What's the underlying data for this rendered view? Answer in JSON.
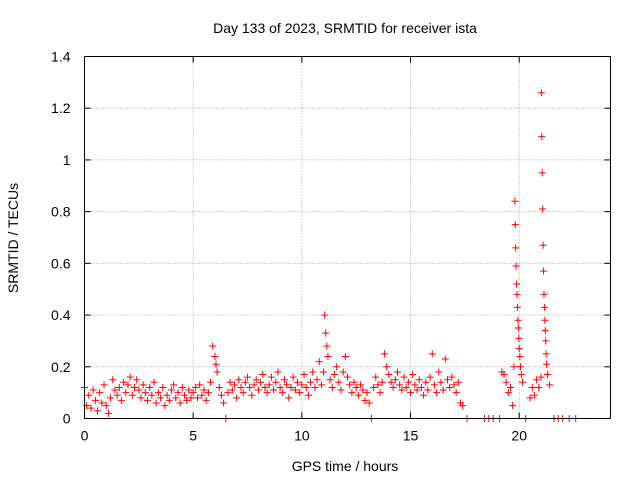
{
  "chart_data": {
    "type": "scatter",
    "title": "Day 133 of 2023, SRMTID for receiver ista",
    "xlabel": "GPS time / hours",
    "ylabel": "SRMTID / TECUs",
    "xlim": [
      0,
      24.2
    ],
    "ylim": [
      0,
      1.4
    ],
    "x_ticks": [
      0,
      5,
      10,
      15,
      20
    ],
    "x_tick_labels": [
      "0",
      "5",
      "10",
      "15",
      "20"
    ],
    "y_ticks": [
      0,
      0.2,
      0.4,
      0.6,
      0.8,
      1.0,
      1.2,
      1.4
    ],
    "y_tick_labels": [
      "0",
      "0.2",
      "0.4",
      "0.6",
      "0.8",
      "1",
      "1.2",
      "1.4"
    ],
    "grid": true,
    "marker": "plus",
    "color": "#ff0000",
    "series": [
      {
        "name": "SRMTID",
        "points": [
          [
            0.0,
            0.12
          ],
          [
            0.1,
            0.05
          ],
          [
            0.2,
            0.09
          ],
          [
            0.3,
            0.04
          ],
          [
            0.4,
            0.11
          ],
          [
            0.5,
            0.07
          ],
          [
            0.6,
            0.03
          ],
          [
            0.7,
            0.1
          ],
          [
            0.8,
            0.06
          ],
          [
            0.9,
            0.13
          ],
          [
            1.0,
            0.05
          ],
          [
            1.1,
            0.02
          ],
          [
            1.2,
            0.08
          ],
          [
            1.3,
            0.15
          ],
          [
            1.4,
            0.11
          ],
          [
            1.5,
            0.09
          ],
          [
            1.6,
            0.12
          ],
          [
            1.7,
            0.07
          ],
          [
            1.8,
            0.14
          ],
          [
            1.9,
            0.1
          ],
          [
            2.0,
            0.13
          ],
          [
            2.1,
            0.16
          ],
          [
            2.2,
            0.09
          ],
          [
            2.3,
            0.12
          ],
          [
            2.4,
            0.15
          ],
          [
            2.5,
            0.11
          ],
          [
            2.6,
            0.08
          ],
          [
            2.7,
            0.13
          ],
          [
            2.8,
            0.1
          ],
          [
            2.9,
            0.07
          ],
          [
            3.0,
            0.12
          ],
          [
            3.1,
            0.09
          ],
          [
            3.2,
            0.14
          ],
          [
            3.3,
            0.06
          ],
          [
            3.4,
            0.1
          ],
          [
            3.5,
            0.08
          ],
          [
            3.6,
            0.12
          ],
          [
            3.7,
            0.05
          ],
          [
            3.8,
            0.09
          ],
          [
            3.9,
            0.07
          ],
          [
            4.0,
            0.11
          ],
          [
            4.1,
            0.13
          ],
          [
            4.2,
            0.08
          ],
          [
            4.3,
            0.1
          ],
          [
            4.4,
            0.06
          ],
          [
            4.5,
            0.12
          ],
          [
            4.6,
            0.09
          ],
          [
            4.7,
            0.07
          ],
          [
            4.8,
            0.11
          ],
          [
            4.9,
            0.08
          ],
          [
            5.0,
            0.1
          ],
          [
            5.1,
            0.12
          ],
          [
            5.2,
            0.08
          ],
          [
            5.3,
            0.13
          ],
          [
            5.4,
            0.09
          ],
          [
            5.5,
            0.11
          ],
          [
            5.6,
            0.07
          ],
          [
            5.7,
            0.1
          ],
          [
            5.8,
            0.14
          ],
          [
            5.9,
            0.28
          ],
          [
            6.0,
            0.24
          ],
          [
            6.05,
            0.21
          ],
          [
            6.1,
            0.18
          ],
          [
            6.2,
            0.12
          ],
          [
            6.3,
            0.09
          ],
          [
            6.4,
            0.06
          ],
          [
            6.5,
            0.0
          ],
          [
            6.6,
            0.1
          ],
          [
            6.7,
            0.14
          ],
          [
            6.8,
            0.11
          ],
          [
            6.9,
            0.13
          ],
          [
            7.0,
            0.08
          ],
          [
            7.1,
            0.15
          ],
          [
            7.2,
            0.12
          ],
          [
            7.3,
            0.1
          ],
          [
            7.4,
            0.14
          ],
          [
            7.5,
            0.16
          ],
          [
            7.6,
            0.12
          ],
          [
            7.7,
            0.09
          ],
          [
            7.8,
            0.13
          ],
          [
            7.9,
            0.15
          ],
          [
            8.0,
            0.11
          ],
          [
            8.1,
            0.14
          ],
          [
            8.2,
            0.17
          ],
          [
            8.3,
            0.12
          ],
          [
            8.4,
            0.1
          ],
          [
            8.5,
            0.13
          ],
          [
            8.6,
            0.16
          ],
          [
            8.7,
            0.11
          ],
          [
            8.8,
            0.14
          ],
          [
            8.9,
            0.18
          ],
          [
            9.0,
            0.12
          ],
          [
            9.1,
            0.1
          ],
          [
            9.2,
            0.15
          ],
          [
            9.3,
            0.13
          ],
          [
            9.4,
            0.08
          ],
          [
            9.5,
            0.12
          ],
          [
            9.6,
            0.16
          ],
          [
            9.7,
            0.11
          ],
          [
            9.8,
            0.14
          ],
          [
            9.9,
            0.1
          ],
          [
            10.0,
            0.13
          ],
          [
            10.1,
            0.17
          ],
          [
            10.2,
            0.12
          ],
          [
            10.3,
            0.09
          ],
          [
            10.4,
            0.14
          ],
          [
            10.5,
            0.18
          ],
          [
            10.6,
            0.12
          ],
          [
            10.7,
            0.15
          ],
          [
            10.8,
            0.22
          ],
          [
            10.9,
            0.13
          ],
          [
            11.0,
            0.18
          ],
          [
            11.05,
            0.4
          ],
          [
            11.1,
            0.33
          ],
          [
            11.15,
            0.28
          ],
          [
            11.2,
            0.24
          ],
          [
            11.3,
            0.15
          ],
          [
            11.4,
            0.12
          ],
          [
            11.5,
            0.17
          ],
          [
            11.6,
            0.2
          ],
          [
            11.7,
            0.14
          ],
          [
            11.8,
            0.11
          ],
          [
            11.9,
            0.18
          ],
          [
            12.0,
            0.24
          ],
          [
            12.1,
            0.16
          ],
          [
            12.2,
            0.13
          ],
          [
            12.3,
            0.1
          ],
          [
            12.4,
            0.14
          ],
          [
            12.5,
            0.12
          ],
          [
            12.6,
            0.09
          ],
          [
            12.7,
            0.13
          ],
          [
            12.8,
            0.11
          ],
          [
            12.9,
            0.07
          ],
          [
            13.0,
            0.1
          ],
          [
            13.1,
            0.06
          ],
          [
            13.2,
            0.0
          ],
          [
            13.3,
            0.12
          ],
          [
            13.4,
            0.16
          ],
          [
            13.5,
            0.13
          ],
          [
            13.6,
            0.1
          ],
          [
            13.7,
            0.14
          ],
          [
            13.8,
            0.25
          ],
          [
            13.9,
            0.2
          ],
          [
            14.0,
            0.17
          ],
          [
            14.1,
            0.14
          ],
          [
            14.2,
            0.12
          ],
          [
            14.3,
            0.15
          ],
          [
            14.4,
            0.18
          ],
          [
            14.5,
            0.13
          ],
          [
            14.6,
            0.11
          ],
          [
            14.7,
            0.16
          ],
          [
            14.8,
            0.12
          ],
          [
            14.9,
            0.14
          ],
          [
            15.0,
            0.1
          ],
          [
            15.1,
            0.17
          ],
          [
            15.2,
            0.13
          ],
          [
            15.3,
            0.11
          ],
          [
            15.4,
            0.15
          ],
          [
            15.5,
            0.12
          ],
          [
            15.6,
            0.09
          ],
          [
            15.7,
            0.14
          ],
          [
            15.8,
            0.11
          ],
          [
            15.9,
            0.16
          ],
          [
            16.0,
            0.25
          ],
          [
            16.1,
            0.13
          ],
          [
            16.2,
            0.1
          ],
          [
            16.3,
            0.18
          ],
          [
            16.4,
            0.14
          ],
          [
            16.5,
            0.11
          ],
          [
            16.6,
            0.23
          ],
          [
            16.7,
            0.15
          ],
          [
            16.8,
            0.12
          ],
          [
            16.9,
            0.16
          ],
          [
            17.0,
            0.13
          ],
          [
            17.1,
            0.1
          ],
          [
            17.2,
            0.14
          ],
          [
            17.3,
            0.06
          ],
          [
            17.4,
            0.05
          ],
          [
            17.6,
            0.0
          ],
          [
            18.4,
            0.0
          ],
          [
            18.6,
            0.0
          ],
          [
            18.8,
            0.0
          ],
          [
            19.1,
            0.0
          ],
          [
            19.2,
            0.18
          ],
          [
            19.3,
            0.17
          ],
          [
            19.4,
            0.14
          ],
          [
            19.5,
            0.1
          ],
          [
            19.6,
            0.12
          ],
          [
            19.7,
            0.05
          ],
          [
            19.75,
            0.2
          ],
          [
            19.8,
            0.84
          ],
          [
            19.82,
            0.75
          ],
          [
            19.84,
            0.66
          ],
          [
            19.86,
            0.59
          ],
          [
            19.88,
            0.52
          ],
          [
            19.9,
            0.48
          ],
          [
            19.92,
            0.43
          ],
          [
            19.94,
            0.38
          ],
          [
            19.96,
            0.35
          ],
          [
            19.98,
            0.31
          ],
          [
            20.0,
            0.27
          ],
          [
            20.03,
            0.24
          ],
          [
            20.06,
            0.2
          ],
          [
            20.1,
            0.17
          ],
          [
            20.15,
            0.14
          ],
          [
            20.3,
            0.0
          ],
          [
            20.5,
            0.08
          ],
          [
            20.6,
            0.12
          ],
          [
            20.7,
            0.09
          ],
          [
            20.8,
            0.15
          ],
          [
            20.9,
            0.12
          ],
          [
            21.0,
            0.16
          ],
          [
            21.02,
            1.26
          ],
          [
            21.04,
            1.09
          ],
          [
            21.06,
            0.95
          ],
          [
            21.08,
            0.81
          ],
          [
            21.1,
            0.67
          ],
          [
            21.12,
            0.57
          ],
          [
            21.14,
            0.48
          ],
          [
            21.16,
            0.43
          ],
          [
            21.18,
            0.38
          ],
          [
            21.2,
            0.34
          ],
          [
            21.22,
            0.3
          ],
          [
            21.24,
            0.25
          ],
          [
            21.26,
            0.21
          ],
          [
            21.3,
            0.17
          ],
          [
            21.4,
            0.13
          ],
          [
            21.6,
            0.0
          ],
          [
            21.8,
            0.0
          ],
          [
            22.0,
            0.0
          ],
          [
            22.3,
            0.0
          ],
          [
            22.6,
            0.0
          ]
        ]
      }
    ]
  }
}
